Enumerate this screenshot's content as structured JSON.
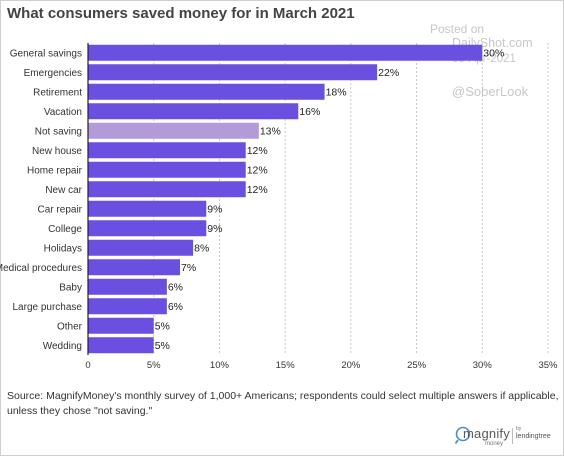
{
  "title": "What consumers saved money for in March 2021",
  "watermark": {
    "posted_on": "Posted on",
    "site": "DailyShot.com",
    "date": "05-Apr-2021",
    "handle": "@SoberLook"
  },
  "source": "Source: MagnifyMoney's monthly survey of 1,000+ Americans; respondents could select multiple answers if applicable, unless they chose \"not saving.\"",
  "logo": {
    "brand": "magnify",
    "sub": "money",
    "by": "by",
    "parent": "lendingtree"
  },
  "colors": {
    "bar": "#6a4fe0",
    "bar_highlight": "#b39ad8",
    "grid": "#c7c7c7",
    "label": "#333333"
  },
  "chart_data": {
    "type": "bar",
    "orientation": "horizontal",
    "title": "What consumers saved money for in March 2021",
    "xlabel": "",
    "ylabel": "",
    "xlim": [
      0,
      35
    ],
    "grid": true,
    "categories": [
      "General savings",
      "Emergencies",
      "Retirement",
      "Vacation",
      "Not saving",
      "New house",
      "Home repair",
      "New car",
      "Car repair",
      "College",
      "Holidays",
      "Medical procedures",
      "Baby",
      "Large purchase",
      "Other",
      "Wedding"
    ],
    "values": [
      30,
      22,
      18,
      16,
      13,
      12,
      12,
      12,
      9,
      9,
      8,
      7,
      6,
      6,
      5,
      5
    ],
    "highlight": [
      "Not saving"
    ],
    "data_labels": [
      "30%",
      "22%",
      "18%",
      "16%",
      "13%",
      "12%",
      "12%",
      "12%",
      "9%",
      "9%",
      "8%",
      "7%",
      "6%",
      "6%",
      "5%",
      "5%"
    ],
    "x_tick_labels": [
      "0",
      "5%",
      "10%",
      "15%",
      "20%",
      "25%",
      "30%",
      "35%"
    ],
    "x_tick_values": [
      0,
      5,
      10,
      15,
      20,
      25,
      30,
      35
    ]
  }
}
